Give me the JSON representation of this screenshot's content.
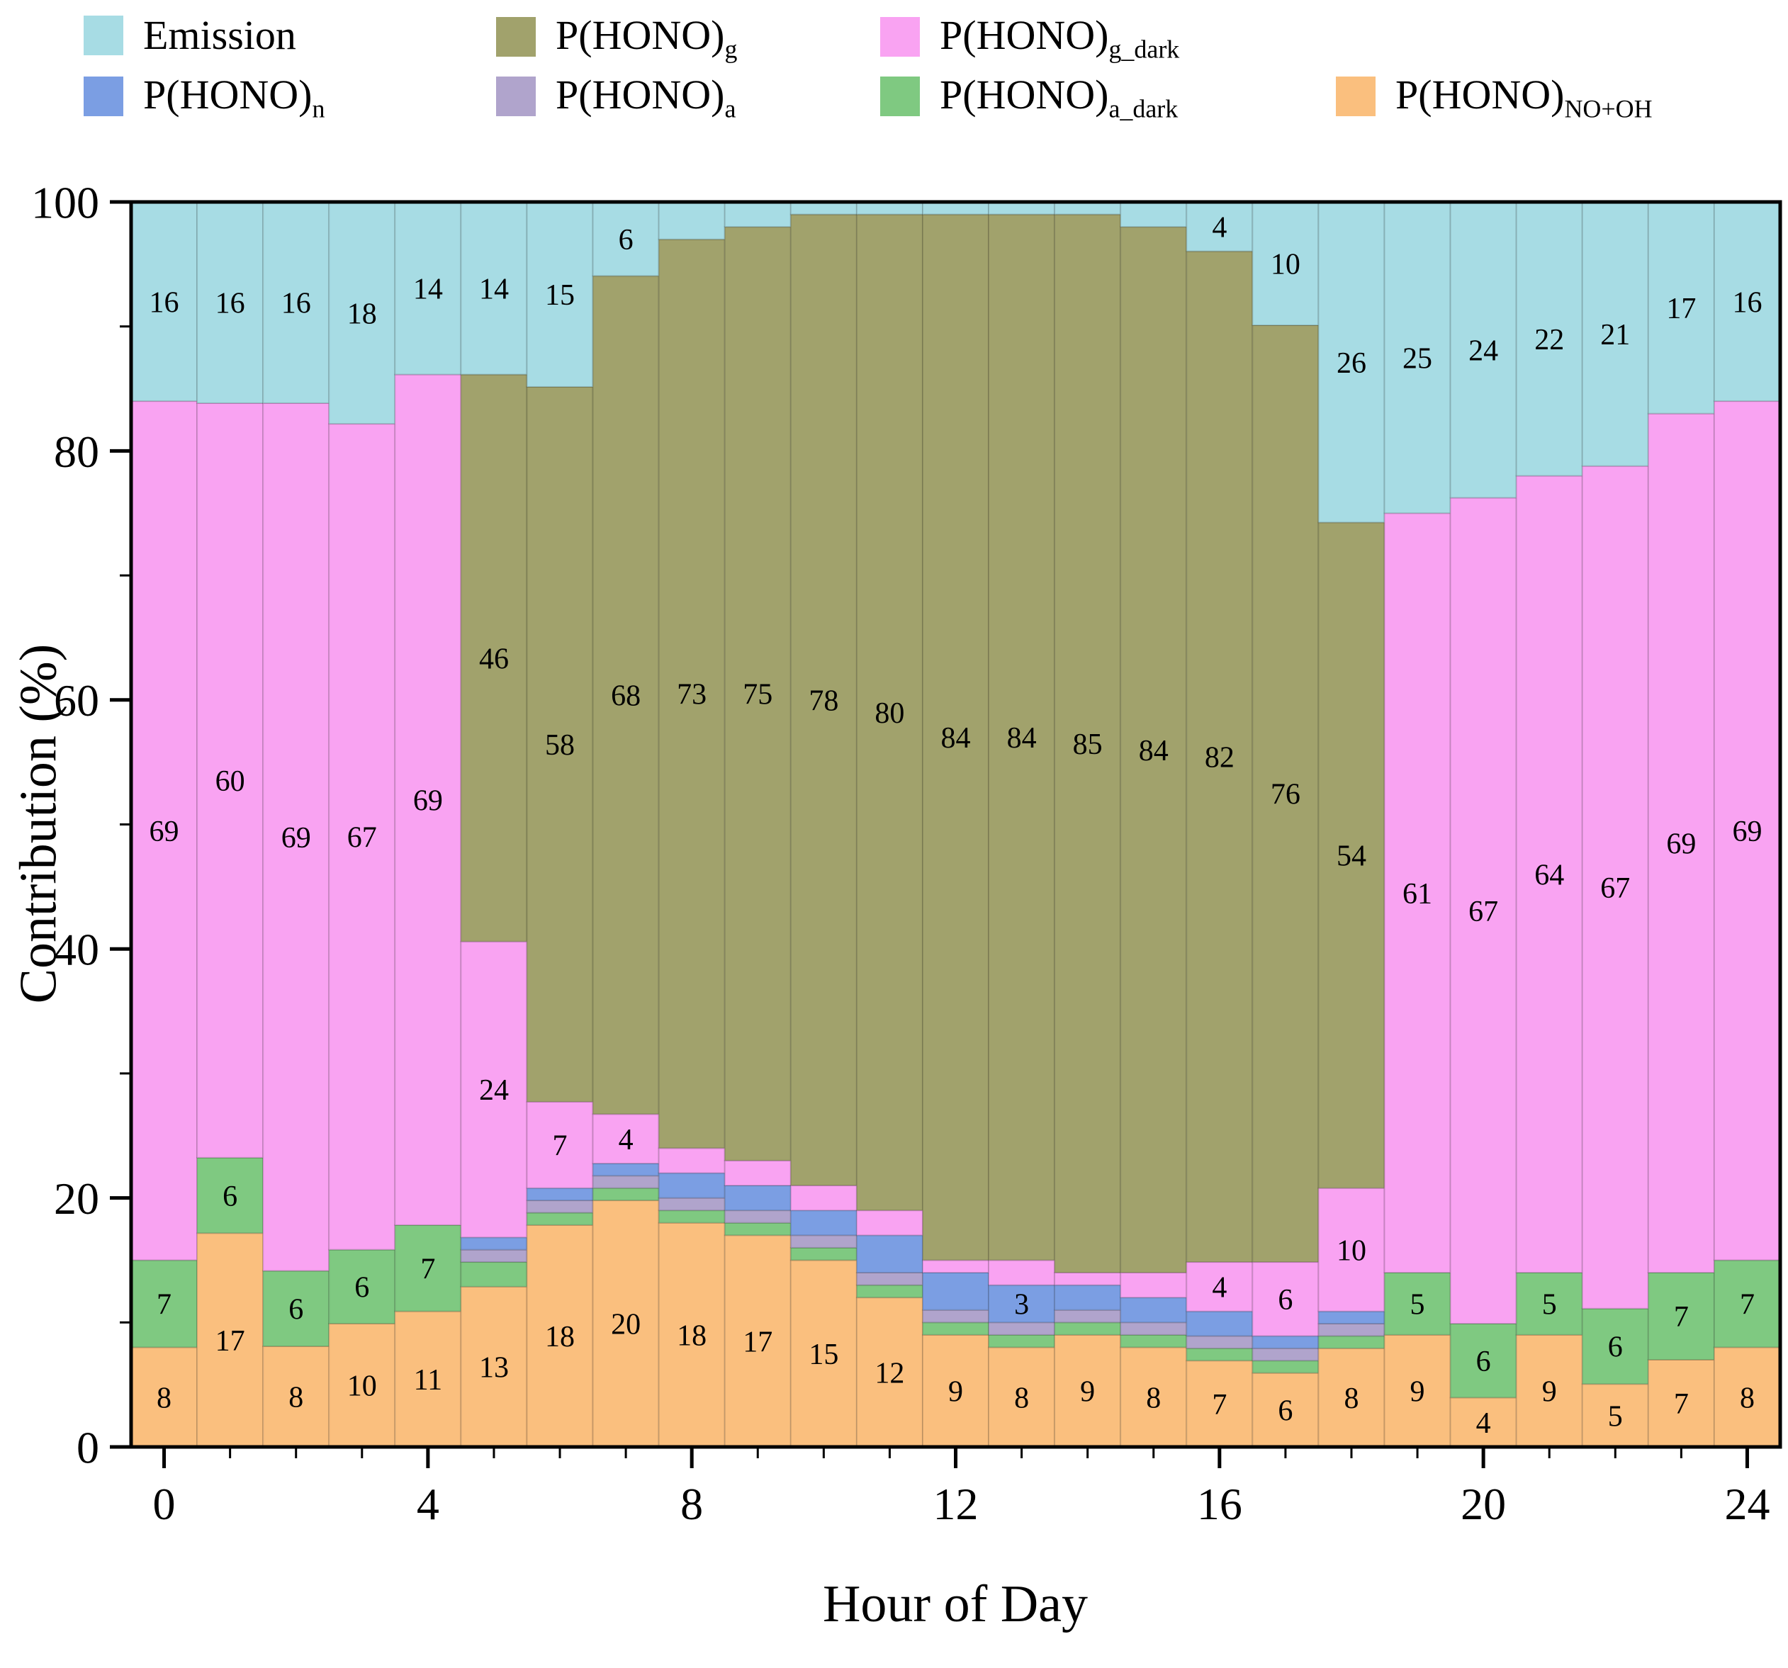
{
  "chart_data": {
    "type": "bar",
    "stacked": true,
    "normalized_to_100": true,
    "title": "",
    "xlabel": "Hour of Day",
    "ylabel": "Contribution (%)",
    "x": [
      0,
      1,
      2,
      3,
      4,
      5,
      6,
      7,
      8,
      9,
      10,
      11,
      12,
      13,
      14,
      15,
      16,
      17,
      18,
      19,
      20,
      21,
      22,
      23,
      24
    ],
    "x_ticks": [
      0,
      4,
      8,
      12,
      16,
      20,
      24
    ],
    "y_ticks": [
      0,
      20,
      40,
      60,
      80,
      100
    ],
    "xlim": [
      -0.5,
      24.5
    ],
    "ylim": [
      0,
      100
    ],
    "grid": false,
    "legend_position": "top",
    "legend_order": [
      "emission",
      "g",
      "g_dark",
      "n",
      "a",
      "a_dark",
      "no_oh"
    ],
    "series": [
      {
        "key": "no_oh",
        "label_base": "P(HONO)",
        "label_sub": "NO+OH",
        "color": "#FABF7E",
        "values": [
          8,
          17,
          8,
          10,
          11,
          13,
          18,
          20,
          18,
          17,
          15,
          12,
          9,
          8,
          9,
          8,
          7,
          6,
          8,
          9,
          4,
          9,
          5,
          7,
          8
        ],
        "labels": [
          8,
          17,
          8,
          10,
          11,
          13,
          18,
          20,
          18,
          17,
          15,
          12,
          9,
          8,
          9,
          8,
          7,
          6,
          8,
          9,
          4,
          9,
          5,
          7,
          8
        ]
      },
      {
        "key": "a_dark",
        "label_base": "P(HONO)",
        "label_sub": "a_dark",
        "color": "#7FC981",
        "values": [
          7,
          6,
          6,
          6,
          7,
          2,
          1,
          1,
          1,
          1,
          1,
          1,
          1,
          1,
          1,
          1,
          1,
          1,
          1,
          5,
          6,
          5,
          6,
          7,
          7
        ],
        "labels": [
          7,
          6,
          6,
          6,
          7,
          null,
          null,
          null,
          null,
          null,
          null,
          null,
          null,
          null,
          null,
          null,
          null,
          null,
          null,
          5,
          6,
          5,
          6,
          7,
          7
        ]
      },
      {
        "key": "a",
        "label_base": "P(HONO)",
        "label_sub": "a",
        "color": "#B0A4CC",
        "values": [
          0,
          0,
          0,
          0,
          0,
          1,
          1,
          1,
          1,
          1,
          1,
          1,
          1,
          1,
          1,
          1,
          1,
          1,
          1,
          0,
          0,
          0,
          0,
          0,
          0
        ],
        "labels": [
          null,
          null,
          null,
          null,
          null,
          null,
          null,
          null,
          null,
          null,
          null,
          null,
          null,
          null,
          null,
          null,
          null,
          null,
          null,
          null,
          null,
          null,
          null,
          null,
          null
        ]
      },
      {
        "key": "n",
        "label_base": "P(HONO)",
        "label_sub": "n",
        "color": "#7B9EE3",
        "values": [
          0,
          0,
          0,
          0,
          0,
          1,
          1,
          1,
          2,
          2,
          2,
          3,
          3,
          3,
          2,
          2,
          2,
          1,
          1,
          0,
          0,
          0,
          0,
          0,
          0
        ],
        "labels": [
          null,
          null,
          null,
          null,
          null,
          null,
          null,
          null,
          null,
          null,
          null,
          null,
          null,
          3,
          null,
          null,
          null,
          null,
          null,
          null,
          null,
          null,
          null,
          null,
          null
        ]
      },
      {
        "key": "g_dark",
        "label_base": "P(HONO)",
        "label_sub": "g_dark",
        "color": "#F9A3F2",
        "values": [
          69,
          60,
          69,
          67,
          69,
          24,
          7,
          4,
          2,
          2,
          2,
          2,
          1,
          2,
          1,
          2,
          4,
          6,
          10,
          61,
          67,
          64,
          67,
          69,
          69
        ],
        "labels": [
          69,
          60,
          69,
          67,
          69,
          24,
          7,
          4,
          null,
          null,
          null,
          null,
          null,
          null,
          null,
          null,
          4,
          6,
          10,
          61,
          67,
          64,
          67,
          69,
          69
        ]
      },
      {
        "key": "g",
        "label_base": "P(HONO)",
        "label_sub": "g",
        "color": "#A1A26C",
        "values": [
          0,
          0,
          0,
          0,
          0,
          46,
          58,
          68,
          73,
          75,
          78,
          80,
          84,
          84,
          85,
          84,
          82,
          76,
          54,
          0,
          0,
          0,
          0,
          0,
          0
        ],
        "labels": [
          null,
          null,
          null,
          null,
          null,
          46,
          58,
          68,
          73,
          75,
          78,
          80,
          84,
          84,
          85,
          84,
          82,
          76,
          54,
          null,
          null,
          null,
          null,
          null,
          null
        ]
      },
      {
        "key": "emission",
        "label_base": "Emission",
        "label_sub": "",
        "color": "#A7DCE4",
        "values": [
          16,
          16,
          16,
          18,
          14,
          14,
          15,
          6,
          3,
          2,
          1,
          1,
          1,
          1,
          1,
          2,
          4,
          10,
          26,
          25,
          24,
          22,
          21,
          17,
          16
        ],
        "labels": [
          16,
          16,
          16,
          18,
          14,
          14,
          15,
          6,
          null,
          null,
          null,
          null,
          null,
          null,
          null,
          null,
          4,
          10,
          26,
          25,
          24,
          22,
          21,
          17,
          16
        ]
      }
    ]
  }
}
